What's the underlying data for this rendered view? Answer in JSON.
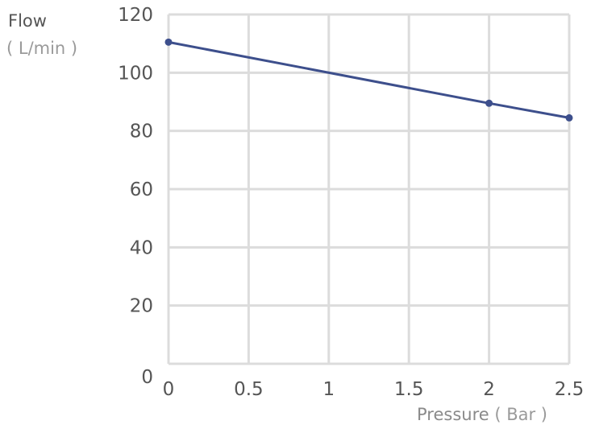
{
  "chart_data": {
    "type": "line",
    "ylabel": "Flow",
    "ylabel_unit": "( L/min )",
    "xlabel": "Pressure",
    "xlabel_unit": "( Bar )",
    "xlim": [
      0,
      2.5
    ],
    "ylim": [
      0,
      120
    ],
    "x_ticks": [
      "0",
      "0.5",
      "1",
      "1.5",
      "2",
      "2.5"
    ],
    "y_ticks": [
      "0",
      "20",
      "40",
      "60",
      "80",
      "100",
      "120"
    ],
    "grid": true,
    "series": [
      {
        "color": "#3d4f8c",
        "x": [
          0,
          2,
          2.5
        ],
        "y": [
          110.5,
          89.5,
          84.5
        ]
      }
    ]
  }
}
